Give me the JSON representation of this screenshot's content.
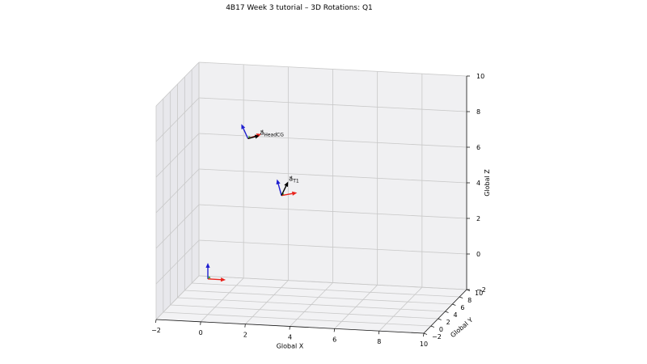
{
  "chart_data": {
    "type": "3d-quiver",
    "title": "4B17 Week 3 tutorial – 3D Rotations: Q1",
    "xlabel": "Global X",
    "ylabel": "Global Y",
    "zlabel": "Global Z",
    "x_ticks": [
      "−2",
      "0",
      "2",
      "4",
      "6",
      "8",
      "10"
    ],
    "y_ticks": [
      "−2",
      "0",
      "2",
      "4",
      "6",
      "8",
      "10"
    ],
    "z_ticks": [
      "−2",
      "0",
      "2",
      "4",
      "6",
      "8",
      "10"
    ],
    "xlim": [
      -2,
      10
    ],
    "ylim": [
      -2,
      10
    ],
    "zlim": [
      -2,
      10
    ],
    "grid": true,
    "colors": {
      "x_axis": "#e8221b",
      "y_axis": "#2ca02c",
      "z_axis": "#1f1fd0",
      "vector": "#000000"
    },
    "frames": [
      {
        "name": "global",
        "origin": [
          0,
          0,
          0
        ],
        "x": [
          0.8,
          0,
          0
        ],
        "y": [
          0,
          0.6,
          0
        ],
        "z": [
          0,
          0,
          0.9
        ]
      },
      {
        "name": "T1",
        "origin": [
          3.3,
          0,
          4.9
        ],
        "x": [
          0.7,
          0,
          0.2
        ],
        "y": [
          0,
          0.6,
          0
        ],
        "z": [
          -0.2,
          0,
          0.9
        ]
      },
      {
        "name": "HeadCG",
        "origin": [
          1.8,
          0,
          8.0
        ],
        "x": [
          0.6,
          0,
          0.3
        ],
        "y": [
          0,
          0.6,
          0
        ],
        "z": [
          -0.3,
          0,
          0.8
        ]
      }
    ],
    "vectors": [
      {
        "name": "T1",
        "label_main": "a⃗",
        "label_sub": "T1",
        "from": [
          3.3,
          0,
          4.9
        ],
        "to": [
          3.6,
          0,
          5.7
        ]
      },
      {
        "name": "HeadCG",
        "label_main": "a⃗",
        "label_sub": "HeadCG",
        "from": [
          1.8,
          0,
          8.0
        ],
        "to": [
          2.3,
          0,
          8.2
        ]
      }
    ]
  }
}
